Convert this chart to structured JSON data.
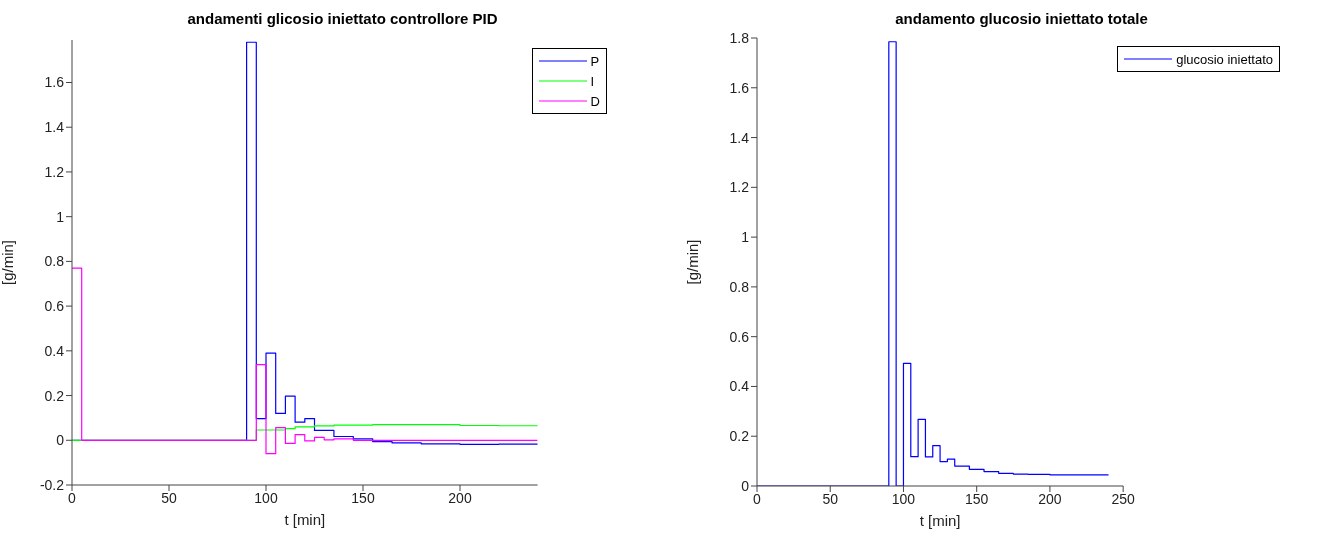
{
  "chart_data": [
    {
      "type": "step",
      "title": "andamenti glicosio iniettato controllore PID",
      "xlabel": "t [min]",
      "ylabel": "[g/min]",
      "xlim": [
        0,
        240
      ],
      "xticks": [
        0,
        50,
        100,
        150,
        200
      ],
      "ylim": [
        -0.2,
        1.79
      ],
      "yticks": [
        -0.2,
        0,
        0.2,
        0.4,
        0.6,
        0.8,
        1,
        1.2,
        1.4,
        1.6
      ],
      "grid": false,
      "legend": "top right",
      "series": [
        {
          "name": "P",
          "color": "#0000ff",
          "x": [
            0,
            90,
            95,
            100,
            105,
            110,
            115,
            120,
            125,
            135,
            145,
            155,
            165,
            180,
            200,
            220,
            240
          ],
          "values": [
            0,
            1.78,
            0.097,
            0.39,
            0.12,
            0.197,
            0.081,
            0.097,
            0.044,
            0.017,
            0.006,
            -0.006,
            -0.012,
            -0.016,
            -0.018,
            -0.017,
            -0.016
          ]
        },
        {
          "name": "I",
          "color": "#00ff00",
          "x": [
            0,
            95,
            110,
            115,
            125,
            135,
            155,
            200,
            220,
            240
          ],
          "values": [
            0,
            0.046,
            0.052,
            0.06,
            0.064,
            0.068,
            0.07,
            0.066,
            0.065,
            0.064
          ]
        },
        {
          "name": "D",
          "color": "#ff00ff",
          "x": [
            0,
            5,
            95,
            100,
            105,
            110,
            115,
            120,
            125,
            130,
            135,
            145,
            240
          ],
          "values": [
            0.77,
            0,
            0.338,
            -0.06,
            0.057,
            -0.014,
            0.025,
            -0.003,
            0.013,
            0.002,
            0.006,
            0,
            0
          ]
        }
      ]
    },
    {
      "type": "step",
      "title": "andamento glucosio iniettato totale",
      "xlabel": "t [min]",
      "ylabel": "[g/min]",
      "xlim": [
        0,
        250
      ],
      "xticks": [
        0,
        50,
        100,
        150,
        200,
        250
      ],
      "ylim": [
        0,
        1.8
      ],
      "yticks": [
        0,
        0.2,
        0.4,
        0.6,
        0.8,
        1,
        1.2,
        1.4,
        1.6,
        1.8
      ],
      "grid": false,
      "legend": "top right",
      "series": [
        {
          "name": "glucosio iniettato",
          "color": "#0000ff",
          "x": [
            0,
            90,
            95,
            100,
            105,
            110,
            115,
            120,
            125,
            130,
            135,
            145,
            155,
            165,
            175,
            185,
            200,
            240
          ],
          "values": [
            0,
            1.785,
            0,
            0.493,
            0.118,
            0.268,
            0.117,
            0.162,
            0.098,
            0.108,
            0.08,
            0.067,
            0.058,
            0.051,
            0.048,
            0.047,
            0.045,
            0.045
          ]
        }
      ]
    }
  ]
}
